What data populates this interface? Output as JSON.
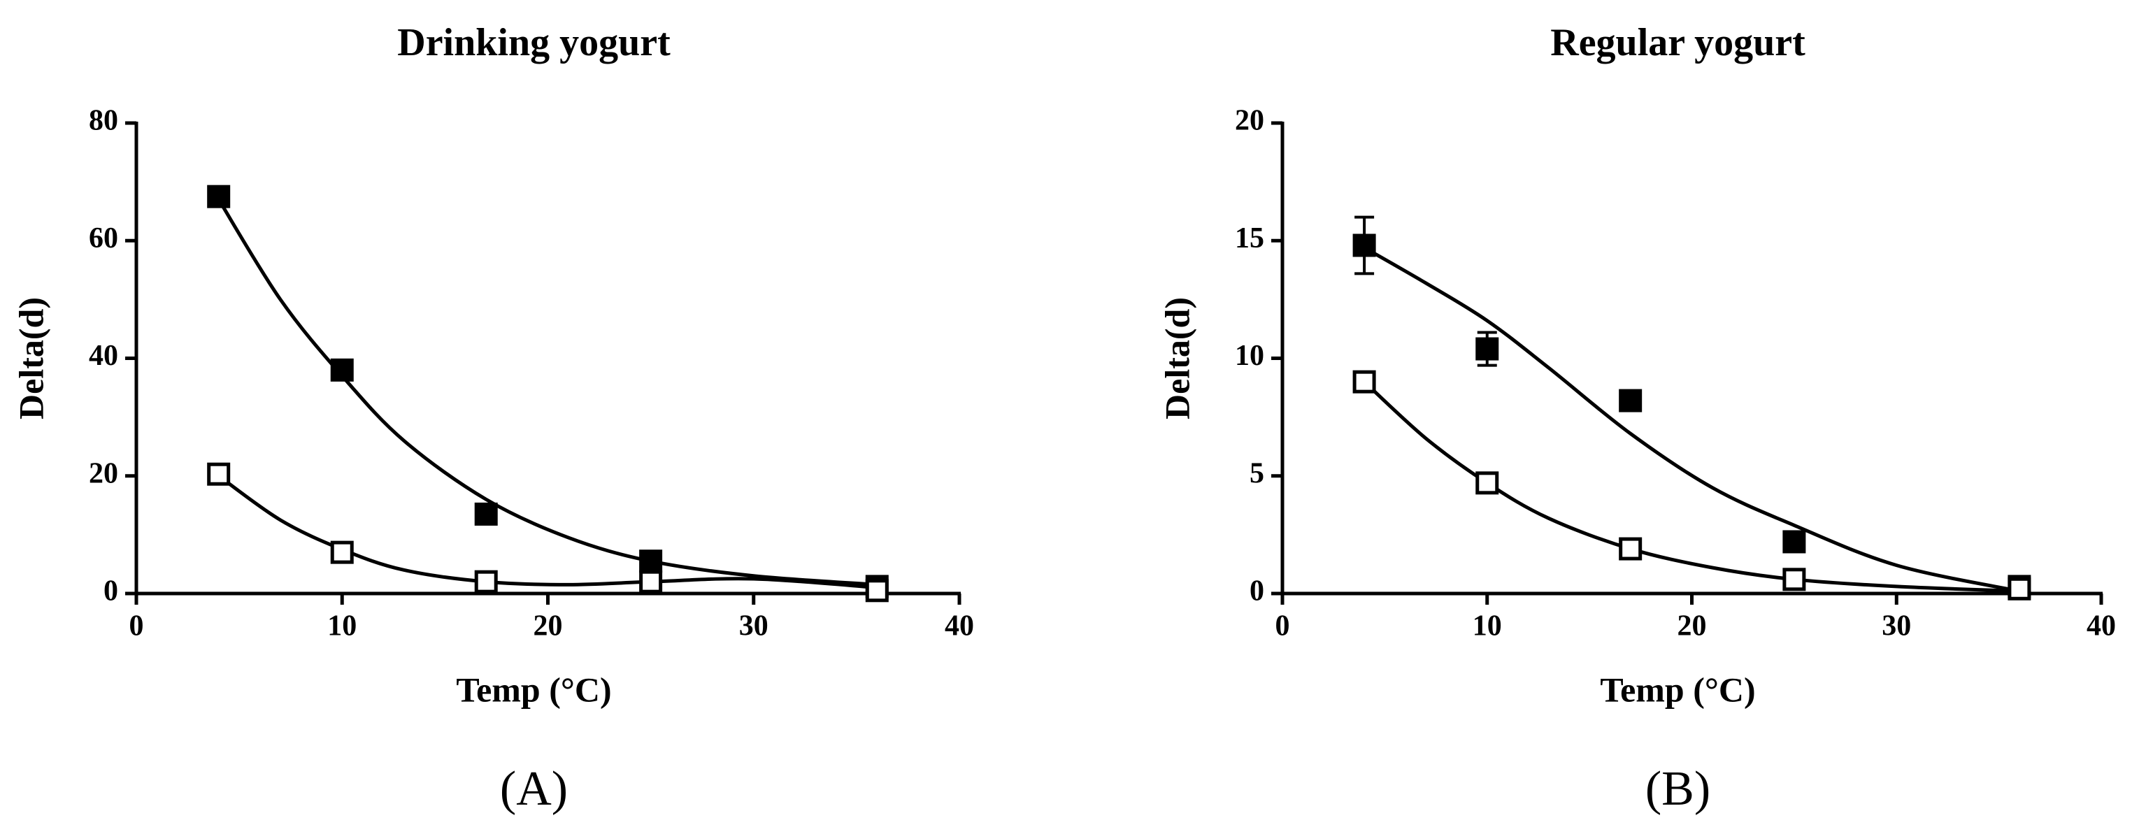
{
  "chart_data": [
    {
      "type": "scatter",
      "title": "Drinking yogurt",
      "panel_label": "(A)",
      "xlabel": "Temp (°C)",
      "ylabel": "Delta(d)",
      "xlim": [
        0,
        40
      ],
      "xticks": [
        0,
        10,
        20,
        30,
        40
      ],
      "ylim": [
        0,
        80
      ],
      "yticks": [
        0,
        20,
        40,
        60,
        80
      ],
      "x": [
        4,
        10,
        17,
        25,
        36
      ],
      "fit_x": [
        4,
        7,
        10,
        13,
        17,
        21,
        25,
        30,
        36
      ],
      "series": [
        {
          "marker": "filled",
          "color": "#000000",
          "values": [
            67.5,
            38,
            13.5,
            5.5,
            1.2
          ],
          "fit": [
            67,
            50,
            37,
            26,
            16,
            9.5,
            5.5,
            3,
            1.5
          ]
        },
        {
          "marker": "open",
          "color": "#000000",
          "values": [
            20.3,
            7,
            2,
            2,
            0.5
          ],
          "fit": [
            20,
            12.5,
            7.5,
            4,
            2,
            1.5,
            2,
            2.5,
            1
          ]
        }
      ]
    },
    {
      "type": "scatter",
      "title": "Regular yogurt",
      "panel_label": "(B)",
      "xlabel": "Temp (°C)",
      "ylabel": "Delta(d)",
      "xlim": [
        0,
        40
      ],
      "xticks": [
        0,
        10,
        20,
        30,
        40
      ],
      "ylim": [
        0,
        20
      ],
      "yticks": [
        0,
        5,
        10,
        15,
        20
      ],
      "x": [
        4,
        10,
        17,
        25,
        36
      ],
      "fit_x": [
        4,
        7,
        10,
        13,
        17,
        21,
        25,
        30,
        36
      ],
      "series": [
        {
          "marker": "filled",
          "color": "#000000",
          "values": [
            14.8,
            10.4,
            8.2,
            2.2,
            0.3
          ],
          "errors": [
            1.2,
            0.7,
            0.2,
            0.2,
            0.2
          ],
          "fit": [
            14.7,
            13.2,
            11.6,
            9.6,
            6.8,
            4.5,
            2.9,
            1.2,
            0.1
          ]
        },
        {
          "marker": "open",
          "color": "#000000",
          "values": [
            9,
            4.7,
            1.9,
            0.6,
            0.2
          ],
          "fit": [
            9,
            6.6,
            4.7,
            3.2,
            1.9,
            1.1,
            0.6,
            0.3,
            0.1
          ]
        }
      ]
    }
  ]
}
